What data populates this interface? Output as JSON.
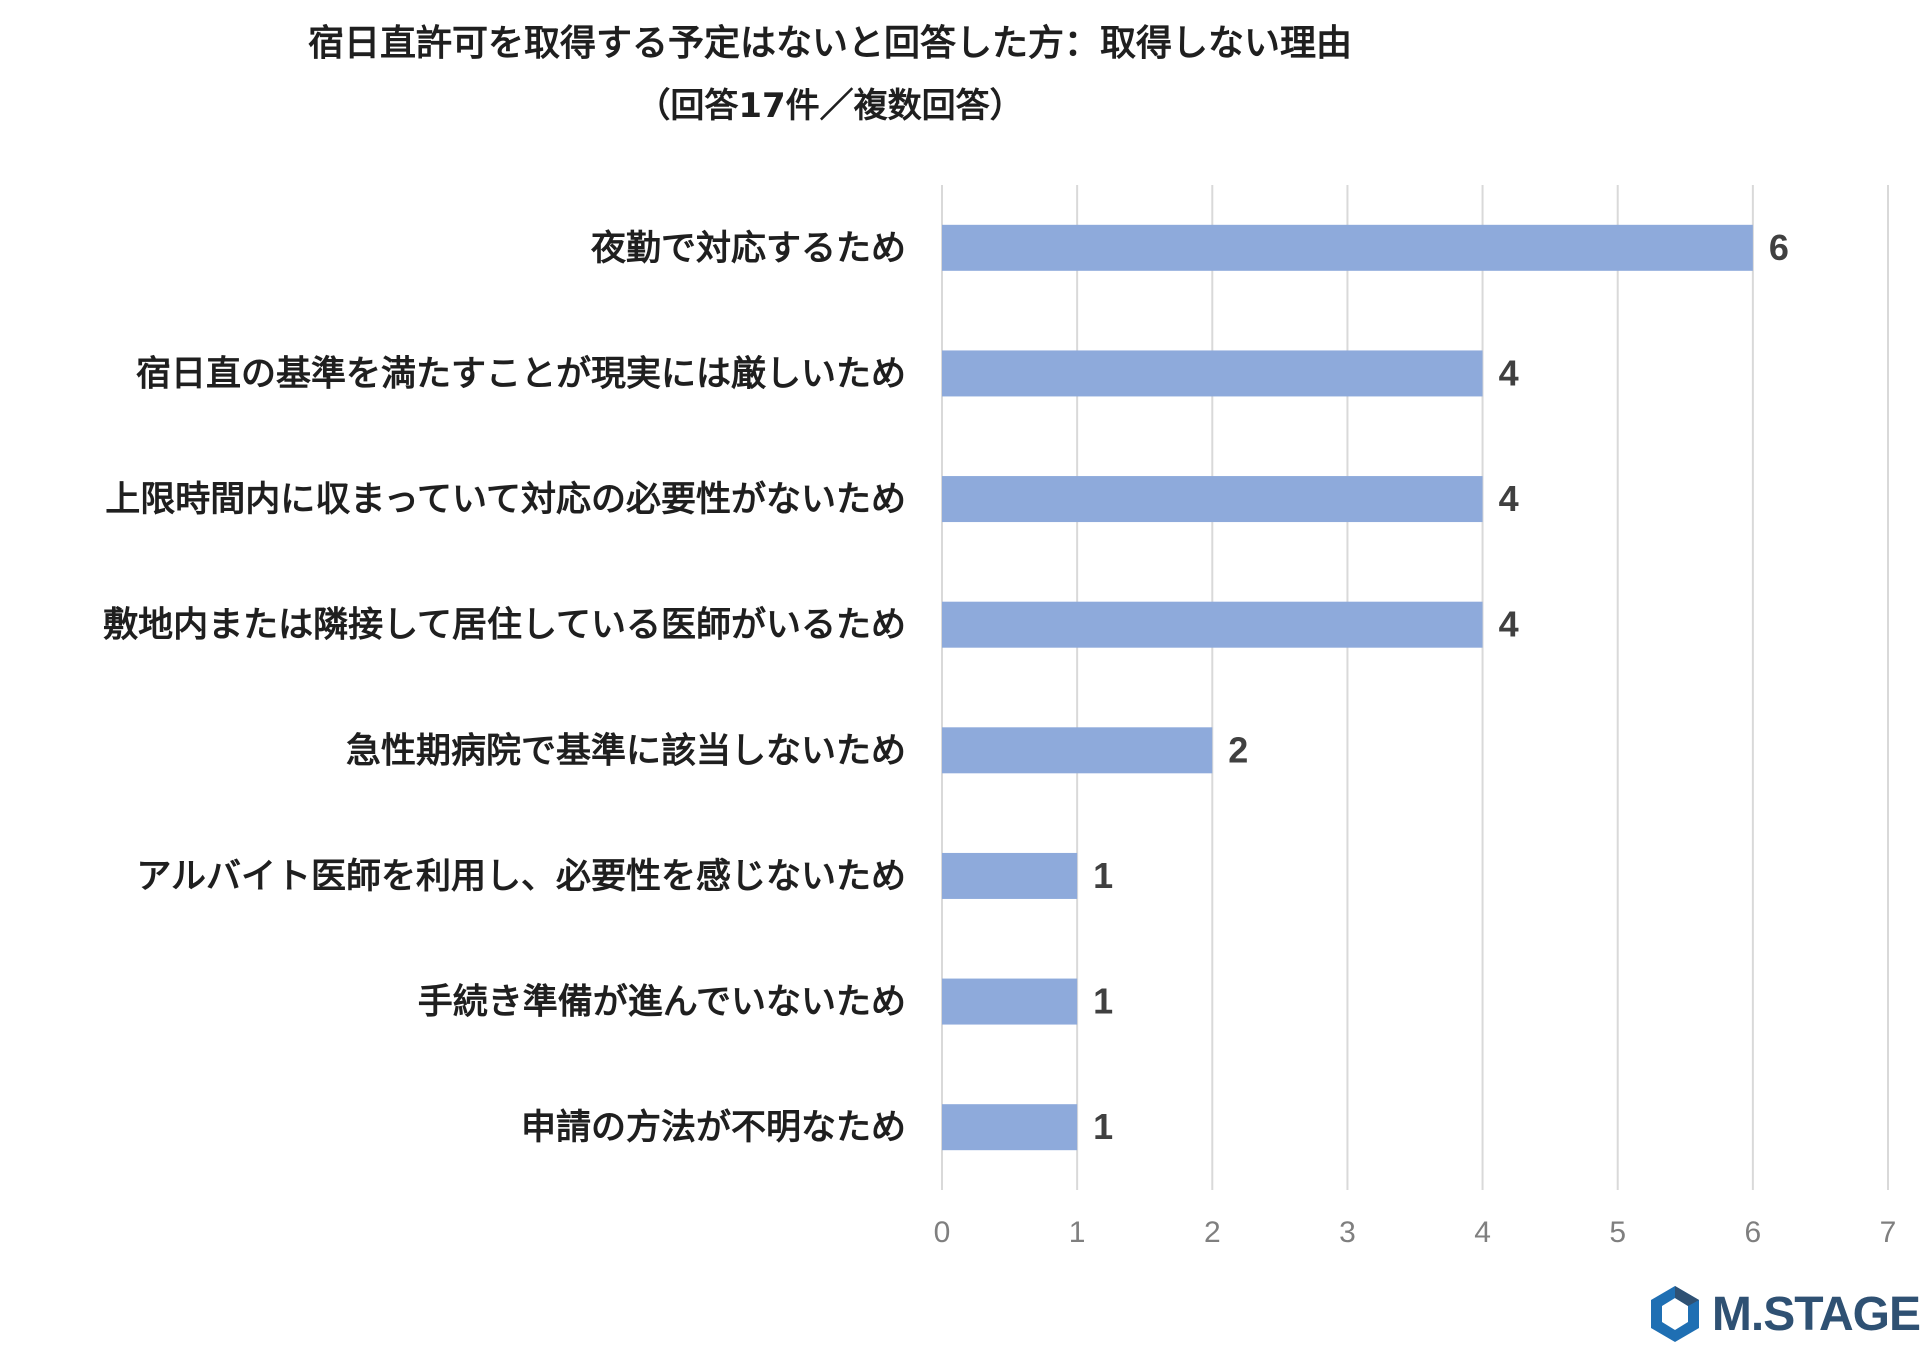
{
  "chart_data": {
    "type": "bar",
    "orientation": "horizontal",
    "title": "宿日直許可を取得する予定はないと回答した方：取得しない理由",
    "subtitle": "（回答17件／複数回答）",
    "categories": [
      "夜勤で対応するため",
      "宿日直の基準を満たすことが現実には厳しいため",
      "上限時間内に収まっていて対応の必要性がないため",
      "敷地内または隣接して居住している医師がいるため",
      "急性期病院で基準に該当しないため",
      "アルバイト医師を利用し、必要性を感じないため",
      "手続き準備が進んでいないため",
      "申請の方法が不明なため"
    ],
    "values": [
      6,
      4,
      4,
      4,
      2,
      1,
      1,
      1
    ],
    "xlim": [
      0,
      7
    ],
    "x_ticks": [
      "0",
      "1",
      "2",
      "3",
      "4",
      "5",
      "6",
      "7"
    ],
    "bar_color": "#8eaadb",
    "grid": true,
    "data_labels": true
  },
  "brand": {
    "logo_text": "M.STAGE",
    "logo_color": "#2f5173",
    "logo_accent": "#1f6fb3"
  }
}
